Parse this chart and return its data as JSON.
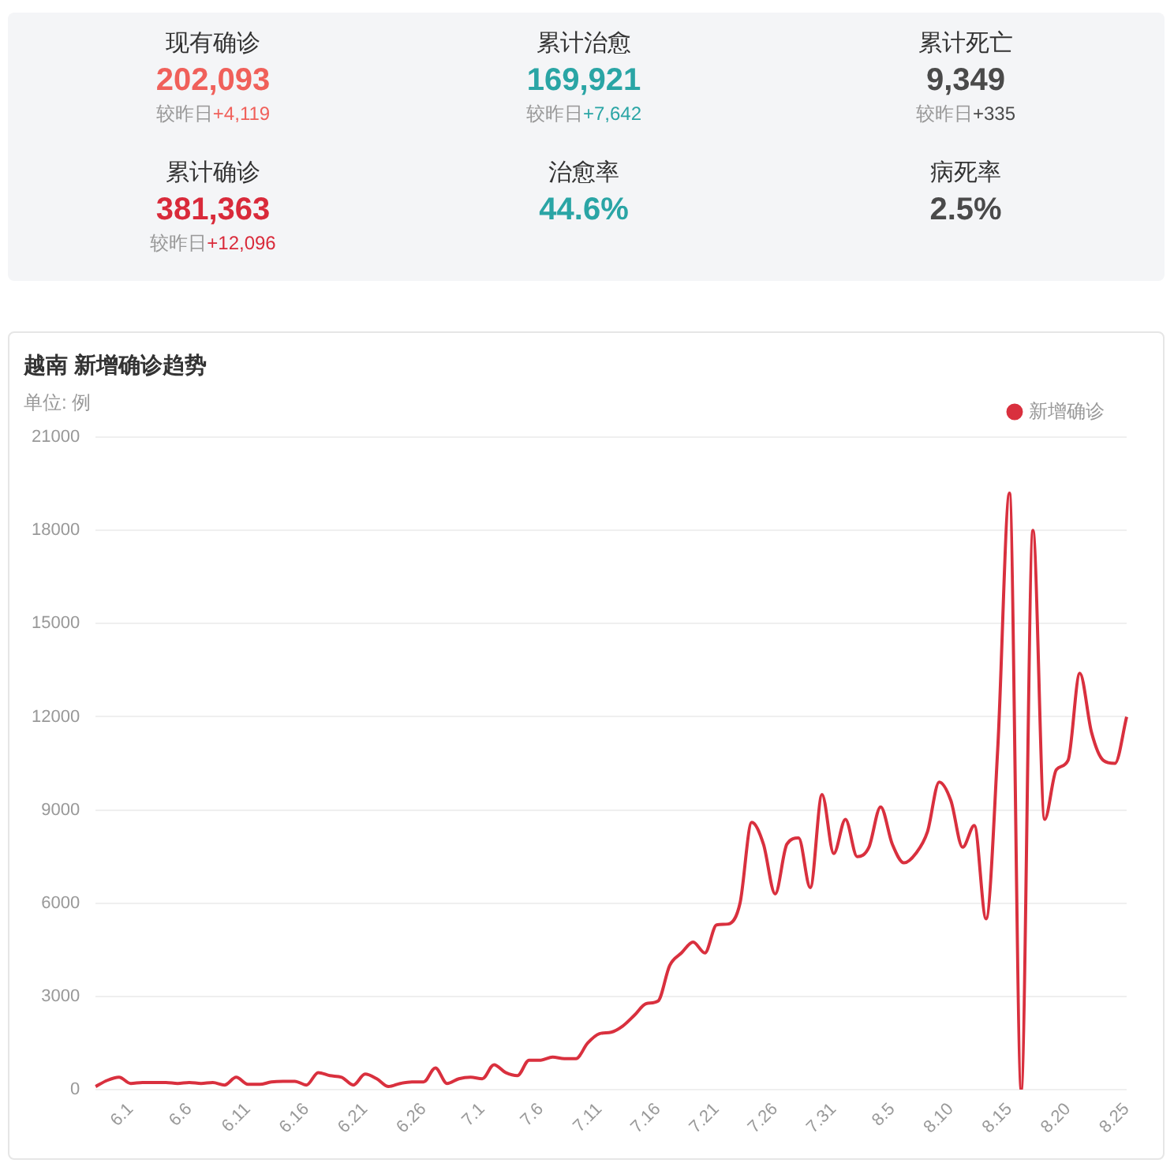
{
  "chart_data": [
    {
      "type": "other",
      "categories": [
        "现有确诊",
        "累计治愈",
        "累计死亡",
        "累计确诊",
        "治愈率",
        "病死率"
      ],
      "value_labels": [
        "202,093",
        "169,921",
        "9,349",
        "381,363",
        "44.6%",
        "2.5%"
      ],
      "annotations": [
        "较昨日+4,119",
        "较昨日+7,642",
        "较昨日+335",
        "较昨日+12,096"
      ]
    },
    {
      "type": "line",
      "title": "越南 新增确诊趋势",
      "subtitle": "单位: 例",
      "categories": [
        null,
        null,
        null,
        "6.1",
        null,
        null,
        null,
        null,
        "6.6",
        null,
        null,
        null,
        null,
        "6.11",
        null,
        null,
        null,
        null,
        "6.16",
        null,
        null,
        null,
        null,
        "6.21",
        null,
        null,
        null,
        null,
        "6.26",
        null,
        null,
        null,
        null,
        "7.1",
        null,
        null,
        null,
        null,
        "7.6",
        null,
        null,
        null,
        null,
        "7.11",
        null,
        null,
        null,
        null,
        "7.16",
        null,
        null,
        null,
        null,
        "7.21",
        null,
        null,
        null,
        null,
        "7.26",
        null,
        null,
        null,
        null,
        "7.31",
        null,
        null,
        null,
        null,
        "8.5",
        null,
        null,
        null,
        null,
        "8.10",
        null,
        null,
        null,
        null,
        "8.15",
        null,
        null,
        null,
        null,
        "8.20",
        null,
        null,
        null,
        null,
        "8.25"
      ],
      "series": [
        {
          "name": "新增确诊",
          "color": "#d9303e",
          "values": [
            100,
            300,
            400,
            200,
            230,
            230,
            230,
            200,
            230,
            200,
            230,
            150,
            400,
            170,
            170,
            250,
            270,
            270,
            150,
            550,
            450,
            400,
            150,
            500,
            350,
            100,
            200,
            250,
            250,
            700,
            200,
            350,
            400,
            350,
            800,
            550,
            450,
            950,
            950,
            1050,
            1000,
            1000,
            1500,
            1800,
            1850,
            2050,
            2400,
            2770,
            2850,
            4000,
            4400,
            4750,
            4400,
            5300,
            5330,
            6000,
            8600,
            7900,
            6300,
            7900,
            8100,
            6500,
            9500,
            7600,
            8700,
            7500,
            7800,
            9100,
            7900,
            7300,
            7600,
            8300,
            9900,
            9300,
            7800,
            8500,
            5500,
            11000,
            19200,
            0,
            18000,
            8700,
            10300,
            10600,
            13400,
            11500,
            10600,
            10500,
            12000
          ]
        }
      ],
      "ylim": [
        0,
        21000
      ],
      "yticks": [
        0,
        3000,
        6000,
        9000,
        12000,
        15000,
        18000,
        21000
      ],
      "grid": "y",
      "legend": "top right",
      "marker": "none",
      "line_style": "solid"
    }
  ]
}
